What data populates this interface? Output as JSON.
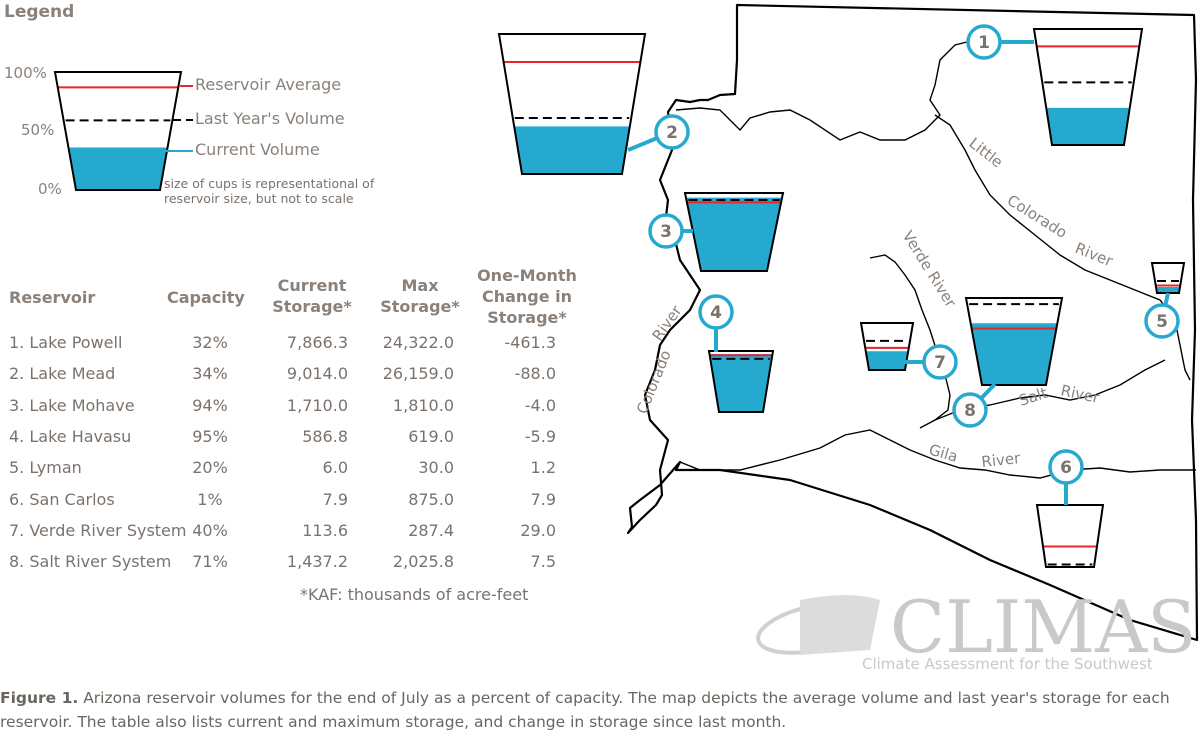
{
  "legend": {
    "title": "Legend",
    "ticks": [
      "100%",
      "50%",
      "0%"
    ],
    "items": [
      {
        "label": "Reservoir Average",
        "color": "#e8252a"
      },
      {
        "label": "Last Year's Volume",
        "color": "#000000"
      },
      {
        "label": "Current Volume",
        "color": "#26a9cf"
      }
    ],
    "note": "size of cups is representational of reservoir size, but not to scale"
  },
  "table": {
    "headers": {
      "reservoir": "Reservoir",
      "capacity": "Capacity",
      "current": [
        "Current",
        "Storage*"
      ],
      "max": [
        "Max",
        "Storage*"
      ],
      "change": [
        "One-Month",
        "Change in",
        "Storage*"
      ]
    },
    "rows": [
      {
        "name": "1. Lake Powell",
        "capacity": "32%",
        "current": "7,866.3",
        "max": "24,322.0",
        "change": "-461.3"
      },
      {
        "name": "2. Lake Mead",
        "capacity": "34%",
        "current": "9,014.0",
        "max": "26,159.0",
        "change": "-88.0"
      },
      {
        "name": "3. Lake Mohave",
        "capacity": "94%",
        "current": "1,710.0",
        "max": "1,810.0",
        "change": "-4.0"
      },
      {
        "name": "4. Lake Havasu",
        "capacity": "95%",
        "current": "586.8",
        "max": "619.0",
        "change": "-5.9"
      },
      {
        "name": "5. Lyman",
        "capacity": "20%",
        "current": "6.0",
        "max": "30.0",
        "change": "1.2"
      },
      {
        "name": "6. San Carlos",
        "capacity": "1%",
        "current": "7.9",
        "max": "875.0",
        "change": "7.9"
      },
      {
        "name": "7. Verde River System",
        "capacity": "40%",
        "current": "113.6",
        "max": "287.4",
        "change": "29.0"
      },
      {
        "name": "8. Salt River System",
        "capacity": "71%",
        "current": "1,437.2",
        "max": "2,025.8",
        "change": "7.5"
      }
    ],
    "footnote": "*KAF: thousands of acre-feet"
  },
  "map": {
    "rivers": {
      "little_colorado": [
        "Little",
        "Colorado",
        "River"
      ],
      "verde": "Verde River",
      "colorado": [
        "Colorado",
        "River"
      ],
      "salt": [
        "Salt",
        "River"
      ],
      "gila": [
        "Gila",
        "River"
      ]
    },
    "badges": [
      "1",
      "2",
      "3",
      "4",
      "5",
      "6",
      "7",
      "8"
    ],
    "cups": [
      {
        "id": 1,
        "current": 0.32,
        "average": 0.85,
        "last_year": 0.54
      },
      {
        "id": 2,
        "current": 0.34,
        "average": 0.8,
        "last_year": 0.4
      },
      {
        "id": 3,
        "current": 0.94,
        "average": 0.88,
        "last_year": 0.91
      },
      {
        "id": 4,
        "current": 0.95,
        "average": 0.93,
        "last_year": 0.87
      },
      {
        "id": 5,
        "current": 0.2,
        "average": 0.25,
        "last_year": 0.4
      },
      {
        "id": 6,
        "current": 0.01,
        "average": 0.33,
        "last_year": 0.04
      },
      {
        "id": 7,
        "current": 0.4,
        "average": 0.47,
        "last_year": 0.62
      },
      {
        "id": 8,
        "current": 0.71,
        "average": 0.65,
        "last_year": 0.93
      }
    ],
    "colors": {
      "water": "#26a9cf",
      "average": "#e8252a",
      "last_year": "#000000",
      "border": "#000000",
      "badge": "#26a9cf"
    }
  },
  "logo": {
    "name": "CLIMAS",
    "subtitle": "Climate Assessment for the Southwest"
  },
  "caption": {
    "label": "Figure 1.",
    "text": " Arizona reservoir volumes for the end of July as a percent of capacity. The map depicts the average volume and last year's storage for each reservoir. The table also lists current and maximum storage, and change in storage since last month."
  }
}
